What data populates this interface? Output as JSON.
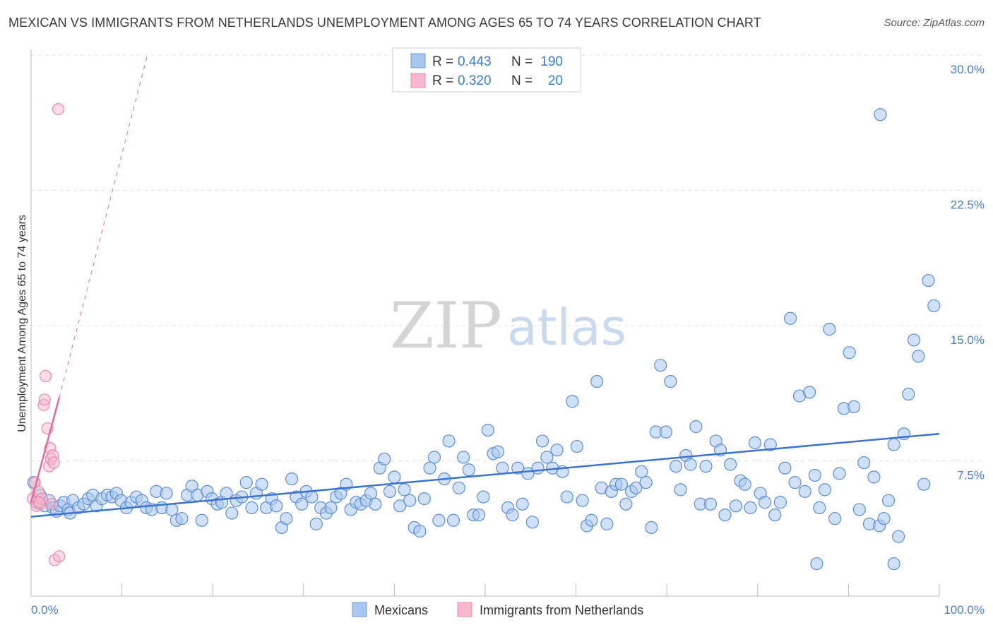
{
  "header": {
    "title": "MEXICAN VS IMMIGRANTS FROM NETHERLANDS UNEMPLOYMENT AMONG AGES 65 TO 74 YEARS CORRELATION CHART",
    "source": "Source: ZipAtlas.com"
  },
  "watermark": {
    "zip": "ZIP",
    "atlas": "atlas"
  },
  "colors": {
    "blue": "#3a74d1",
    "blue_fill": "#a9c6ee",
    "pink": "#e86a96",
    "pink_fill": "#f7b8cc",
    "tick_text": "#4a7fc7"
  },
  "legend": {
    "row1": {
      "r_label": "R =",
      "r_value": "0.443",
      "n_label": "N =",
      "n_value": "190"
    },
    "row2": {
      "r_label": "R =",
      "r_value": "0.320",
      "n_label": "N =",
      "n_value": "20"
    }
  },
  "bottom_legend": {
    "series1": "Mexicans",
    "series2": "Immigrants from Netherlands"
  },
  "chart_data": {
    "type": "scatter",
    "title": "MEXICAN VS IMMIGRANTS FROM NETHERLANDS UNEMPLOYMENT AMONG AGES 65 TO 74 YEARS CORRELATION CHART",
    "xlabel": "",
    "ylabel": "Unemployment Among Ages 65 to 74 years",
    "xlim": [
      0,
      100
    ],
    "ylim": [
      0,
      30
    ],
    "x_tick_labels": [
      "0.0%",
      "100.0%"
    ],
    "y_ticks": [
      7.5,
      15.0,
      22.5,
      30.0
    ],
    "y_tick_labels": [
      "7.5%",
      "15.0%",
      "22.5%",
      "30.0%"
    ],
    "series": [
      {
        "name": "Mexicans",
        "r": 0.443,
        "n": 190,
        "trend": {
          "x": [
            0,
            100
          ],
          "y": [
            4.4,
            9.0
          ]
        },
        "points": [
          [
            0.3,
            6.3
          ],
          [
            0.6,
            5.2
          ],
          [
            1.0,
            5.6
          ],
          [
            1.5,
            5.0
          ],
          [
            2.0,
            5.3
          ],
          [
            2.4,
            4.9
          ],
          [
            2.8,
            4.7
          ],
          [
            3.2,
            5.0
          ],
          [
            3.6,
            5.2
          ],
          [
            4.1,
            4.8
          ],
          [
            4.6,
            5.3
          ],
          [
            4.3,
            4.6
          ],
          [
            5.2,
            4.9
          ],
          [
            5.8,
            5.1
          ],
          [
            6.3,
            5.4
          ],
          [
            6.8,
            5.6
          ],
          [
            7.2,
            5.0
          ],
          [
            7.8,
            5.4
          ],
          [
            8.4,
            5.6
          ],
          [
            8.9,
            5.5
          ],
          [
            9.4,
            5.7
          ],
          [
            9.9,
            5.3
          ],
          [
            10.5,
            4.9
          ],
          [
            11.0,
            5.2
          ],
          [
            11.6,
            5.5
          ],
          [
            12.2,
            5.3
          ],
          [
            12.7,
            4.9
          ],
          [
            13.3,
            4.8
          ],
          [
            13.8,
            5.8
          ],
          [
            14.4,
            4.9
          ],
          [
            14.9,
            5.7
          ],
          [
            15.5,
            4.8
          ],
          [
            16.0,
            4.2
          ],
          [
            16.6,
            4.3
          ],
          [
            17.2,
            5.6
          ],
          [
            17.7,
            6.1
          ],
          [
            18.3,
            5.6
          ],
          [
            18.8,
            4.2
          ],
          [
            19.4,
            5.8
          ],
          [
            19.9,
            5.4
          ],
          [
            20.5,
            5.1
          ],
          [
            21.0,
            5.2
          ],
          [
            21.5,
            5.7
          ],
          [
            22.1,
            4.6
          ],
          [
            22.6,
            5.3
          ],
          [
            23.2,
            5.5
          ],
          [
            23.7,
            6.3
          ],
          [
            24.3,
            4.9
          ],
          [
            24.8,
            5.7
          ],
          [
            25.4,
            6.2
          ],
          [
            25.9,
            4.9
          ],
          [
            26.5,
            5.4
          ],
          [
            27.0,
            5.0
          ],
          [
            27.6,
            3.8
          ],
          [
            28.1,
            4.3
          ],
          [
            28.7,
            6.5
          ],
          [
            29.2,
            5.5
          ],
          [
            29.8,
            5.1
          ],
          [
            30.3,
            5.8
          ],
          [
            30.9,
            5.5
          ],
          [
            31.4,
            4.0
          ],
          [
            31.9,
            4.9
          ],
          [
            32.5,
            4.6
          ],
          [
            33.0,
            4.9
          ],
          [
            33.6,
            5.5
          ],
          [
            34.1,
            5.7
          ],
          [
            34.7,
            6.2
          ],
          [
            35.2,
            4.8
          ],
          [
            35.8,
            5.2
          ],
          [
            36.3,
            5.1
          ],
          [
            36.9,
            5.3
          ],
          [
            37.4,
            5.7
          ],
          [
            37.9,
            5.1
          ],
          [
            38.4,
            7.1
          ],
          [
            38.9,
            7.6
          ],
          [
            39.5,
            5.8
          ],
          [
            40.0,
            6.6
          ],
          [
            40.6,
            5.0
          ],
          [
            41.1,
            5.9
          ],
          [
            41.7,
            5.3
          ],
          [
            42.2,
            3.8
          ],
          [
            42.8,
            3.6
          ],
          [
            43.3,
            5.4
          ],
          [
            43.9,
            7.1
          ],
          [
            44.4,
            7.7
          ],
          [
            44.9,
            4.2
          ],
          [
            45.5,
            6.5
          ],
          [
            46.0,
            8.6
          ],
          [
            46.5,
            4.2
          ],
          [
            47.1,
            6.0
          ],
          [
            47.6,
            7.7
          ],
          [
            48.2,
            7.0
          ],
          [
            48.7,
            4.5
          ],
          [
            49.3,
            4.5
          ],
          [
            49.8,
            5.5
          ],
          [
            50.3,
            9.2
          ],
          [
            50.9,
            7.9
          ],
          [
            51.4,
            8.0
          ],
          [
            51.9,
            7.1
          ],
          [
            52.5,
            4.9
          ],
          [
            53.0,
            4.5
          ],
          [
            53.6,
            7.1
          ],
          [
            54.1,
            5.1
          ],
          [
            54.7,
            6.8
          ],
          [
            55.2,
            4.1
          ],
          [
            55.8,
            7.1
          ],
          [
            56.3,
            8.6
          ],
          [
            56.8,
            7.7
          ],
          [
            57.4,
            7.1
          ],
          [
            57.9,
            8.1
          ],
          [
            58.5,
            6.9
          ],
          [
            59.0,
            5.5
          ],
          [
            59.6,
            10.8
          ],
          [
            60.1,
            8.3
          ],
          [
            60.7,
            5.3
          ],
          [
            61.2,
            3.9
          ],
          [
            61.7,
            4.2
          ],
          [
            62.3,
            11.9
          ],
          [
            62.8,
            6.0
          ],
          [
            63.4,
            4.0
          ],
          [
            63.9,
            5.8
          ],
          [
            64.4,
            6.2
          ],
          [
            65.0,
            6.2
          ],
          [
            65.5,
            5.1
          ],
          [
            66.1,
            5.8
          ],
          [
            66.6,
            6.0
          ],
          [
            67.2,
            6.9
          ],
          [
            67.7,
            6.3
          ],
          [
            68.3,
            3.8
          ],
          [
            68.8,
            9.1
          ],
          [
            69.3,
            12.8
          ],
          [
            69.9,
            9.1
          ],
          [
            70.4,
            11.9
          ],
          [
            71.0,
            7.2
          ],
          [
            71.5,
            5.9
          ],
          [
            72.1,
            7.8
          ],
          [
            72.6,
            7.3
          ],
          [
            73.2,
            9.4
          ],
          [
            73.7,
            5.1
          ],
          [
            74.3,
            7.2
          ],
          [
            74.8,
            5.1
          ],
          [
            75.4,
            8.6
          ],
          [
            75.9,
            8.1
          ],
          [
            76.4,
            4.5
          ],
          [
            77.0,
            7.3
          ],
          [
            77.6,
            5.0
          ],
          [
            78.1,
            6.4
          ],
          [
            78.6,
            6.2
          ],
          [
            79.2,
            4.9
          ],
          [
            79.7,
            8.5
          ],
          [
            80.3,
            5.7
          ],
          [
            80.8,
            5.2
          ],
          [
            81.4,
            8.4
          ],
          [
            81.9,
            4.5
          ],
          [
            82.5,
            5.2
          ],
          [
            83.0,
            7.1
          ],
          [
            83.6,
            15.4
          ],
          [
            84.1,
            6.3
          ],
          [
            84.6,
            11.1
          ],
          [
            85.2,
            5.8
          ],
          [
            85.7,
            11.3
          ],
          [
            86.3,
            6.7
          ],
          [
            86.8,
            4.9
          ],
          [
            87.4,
            5.9
          ],
          [
            87.9,
            14.8
          ],
          [
            88.5,
            4.3
          ],
          [
            89.0,
            6.8
          ],
          [
            89.5,
            10.4
          ],
          [
            90.1,
            13.5
          ],
          [
            90.6,
            10.5
          ],
          [
            91.2,
            4.8
          ],
          [
            91.7,
            7.4
          ],
          [
            92.3,
            4.0
          ],
          [
            92.8,
            6.6
          ],
          [
            93.4,
            3.9
          ],
          [
            93.9,
            4.3
          ],
          [
            94.4,
            5.3
          ],
          [
            95.0,
            8.4
          ],
          [
            95.5,
            3.3
          ],
          [
            96.1,
            9.0
          ],
          [
            96.6,
            11.2
          ],
          [
            97.2,
            14.2
          ],
          [
            97.7,
            13.3
          ],
          [
            98.3,
            6.2
          ],
          [
            98.8,
            17.5
          ],
          [
            99.4,
            16.1
          ],
          [
            93.5,
            26.7
          ],
          [
            86.5,
            1.8
          ],
          [
            95.0,
            1.8
          ]
        ]
      },
      {
        "name": "Immigrants from Netherlands",
        "r": 0.32,
        "n": 20,
        "trend": {
          "x": [
            0,
            3.1
          ],
          "y": [
            5.2,
            11.0
          ],
          "dashed_extension_to": [
            12.8,
            30.0
          ]
        },
        "points": [
          [
            0.2,
            5.4
          ],
          [
            0.4,
            6.3
          ],
          [
            0.6,
            5.0
          ],
          [
            0.8,
            5.8
          ],
          [
            1.0,
            5.1
          ],
          [
            1.2,
            5.4
          ],
          [
            1.4,
            10.6
          ],
          [
            1.5,
            10.9
          ],
          [
            1.6,
            12.2
          ],
          [
            1.8,
            9.3
          ],
          [
            2.0,
            7.2
          ],
          [
            2.1,
            8.2
          ],
          [
            2.2,
            7.6
          ],
          [
            2.3,
            5.1
          ],
          [
            2.4,
            7.8
          ],
          [
            2.5,
            7.4
          ],
          [
            2.6,
            2.0
          ],
          [
            3.0,
            27.0
          ],
          [
            3.1,
            2.2
          ],
          [
            0.9,
            5.2
          ]
        ]
      }
    ]
  }
}
